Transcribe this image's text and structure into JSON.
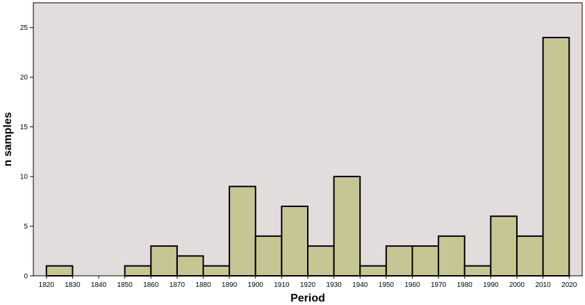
{
  "chart_data": {
    "type": "bar",
    "title": "",
    "xlabel": "Period",
    "ylabel": "n samples",
    "x_ticks": [
      "1820",
      "1830",
      "1840",
      "1850",
      "1860",
      "1870",
      "1880",
      "1890",
      "1900",
      "1910",
      "1920",
      "1930",
      "1940",
      "1950",
      "1960",
      "1970",
      "1980",
      "1990",
      "2000",
      "2010",
      "2020"
    ],
    "y_ticks": [
      0,
      5,
      10,
      15,
      20,
      25
    ],
    "ylim": [
      0,
      27.5
    ],
    "bins": [
      {
        "start": 1820,
        "end": 1830,
        "value": 1
      },
      {
        "start": 1830,
        "end": 1840,
        "value": 0
      },
      {
        "start": 1840,
        "end": 1850,
        "value": 0
      },
      {
        "start": 1850,
        "end": 1860,
        "value": 1
      },
      {
        "start": 1860,
        "end": 1870,
        "value": 3
      },
      {
        "start": 1870,
        "end": 1880,
        "value": 2
      },
      {
        "start": 1880,
        "end": 1890,
        "value": 1
      },
      {
        "start": 1890,
        "end": 1900,
        "value": 9
      },
      {
        "start": 1900,
        "end": 1910,
        "value": 4
      },
      {
        "start": 1910,
        "end": 1920,
        "value": 7
      },
      {
        "start": 1920,
        "end": 1930,
        "value": 3
      },
      {
        "start": 1930,
        "end": 1940,
        "value": 10
      },
      {
        "start": 1940,
        "end": 1950,
        "value": 1
      },
      {
        "start": 1950,
        "end": 1960,
        "value": 3
      },
      {
        "start": 1960,
        "end": 1970,
        "value": 3
      },
      {
        "start": 1970,
        "end": 1980,
        "value": 4
      },
      {
        "start": 1980,
        "end": 1990,
        "value": 1
      },
      {
        "start": 1990,
        "end": 2000,
        "value": 6
      },
      {
        "start": 2000,
        "end": 2010,
        "value": 4
      },
      {
        "start": 2010,
        "end": 2020,
        "value": 24
      }
    ],
    "grid": false,
    "colors": {
      "plot_background": "#e3dcdc",
      "bar_fill": "#c6c695",
      "bar_stroke": "#000000"
    }
  }
}
